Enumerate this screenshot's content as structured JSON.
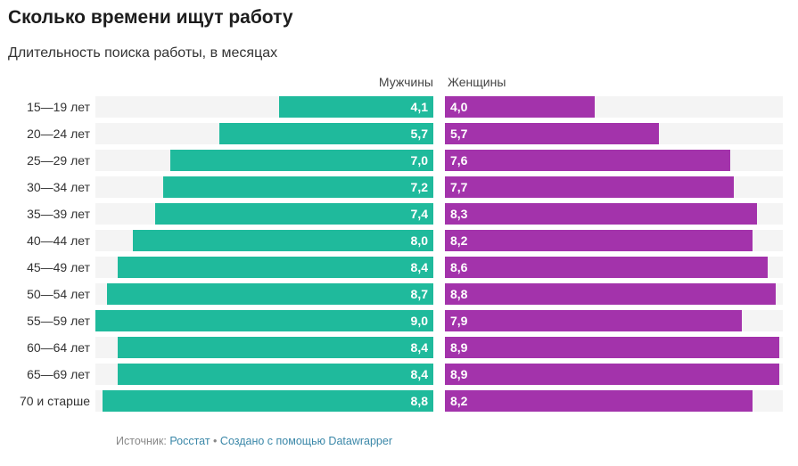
{
  "title": "Сколько времени ищут работу",
  "subtitle": "Длительность поиска работы, в месяцах",
  "footer": {
    "source_label": "Источник:",
    "source": "Росстат",
    "separator": "•",
    "credit": "Создано с помощью Datawrapper"
  },
  "chart_data": {
    "type": "bar",
    "orientation": "horizontal-butterfly",
    "categories": [
      "15—19 лет",
      "20—24 лет",
      "25—29 лет",
      "30—34 лет",
      "35—39 лет",
      "40—44 лет",
      "45—49 лет",
      "50—54 лет",
      "55—59 лет",
      "60—64 лет",
      "65—69 лет",
      "70 и старше"
    ],
    "series": [
      {
        "name": "Мужчины",
        "color": "#1fba9c",
        "values": [
          4.1,
          5.7,
          7.0,
          7.2,
          7.4,
          8.0,
          8.4,
          8.7,
          9.0,
          8.4,
          8.4,
          8.8
        ]
      },
      {
        "name": "Женщины",
        "color": "#a333ab",
        "values": [
          4.0,
          5.7,
          7.6,
          7.7,
          8.3,
          8.2,
          8.6,
          8.8,
          7.9,
          8.9,
          8.9,
          8.2
        ]
      }
    ],
    "xlim": [
      0,
      9.0
    ],
    "decimal_separator": ","
  }
}
